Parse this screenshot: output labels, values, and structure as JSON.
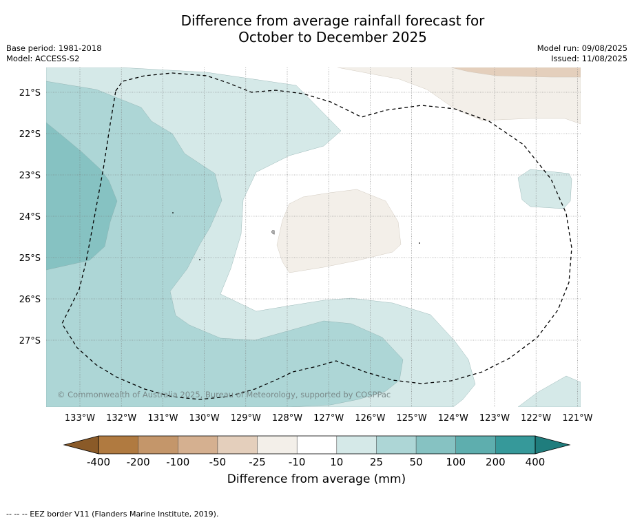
{
  "title": {
    "line1": "Difference from average rainfall forecast for",
    "line2": "October to December 2025"
  },
  "meta": {
    "base_period": "Base period: 1981-2018",
    "model": "Model: ACCESS-S2",
    "model_run": "Model run: 09/08/2025",
    "issued": "Issued: 11/08/2025"
  },
  "map": {
    "lat_labels": [
      "21°S",
      "22°S",
      "23°S",
      "24°S",
      "25°S",
      "26°S",
      "27°S"
    ],
    "lon_labels": [
      "133°W",
      "132°W",
      "131°W",
      "130°W",
      "129°W",
      "128°W",
      "127°W",
      "126°W",
      "125°W",
      "124°W",
      "123°W",
      "122°W",
      "121°W"
    ],
    "copyright": "© Commonwealth of Australia 2025, Bureau of Meteorology, supported by COSPPac",
    "island_label": "q"
  },
  "colorbar": {
    "labels": [
      "-400",
      "-200",
      "-100",
      "-50",
      "-25",
      "-10",
      "10",
      "25",
      "50",
      "100",
      "200",
      "400"
    ],
    "colors": [
      "#8a5a28",
      "#b07a40",
      "#c4966a",
      "#d5b090",
      "#e4cfbc",
      "#f3efe9",
      "#ffffff",
      "#d5e9e8",
      "#add6d6",
      "#86c2c2",
      "#5eaeae",
      "#36999a",
      "#1f7d7d"
    ],
    "title": "Difference from average (mm)"
  },
  "footnote": "--  --  -- EEZ border V11 (Flanders Marine Institute, 2019)."
}
